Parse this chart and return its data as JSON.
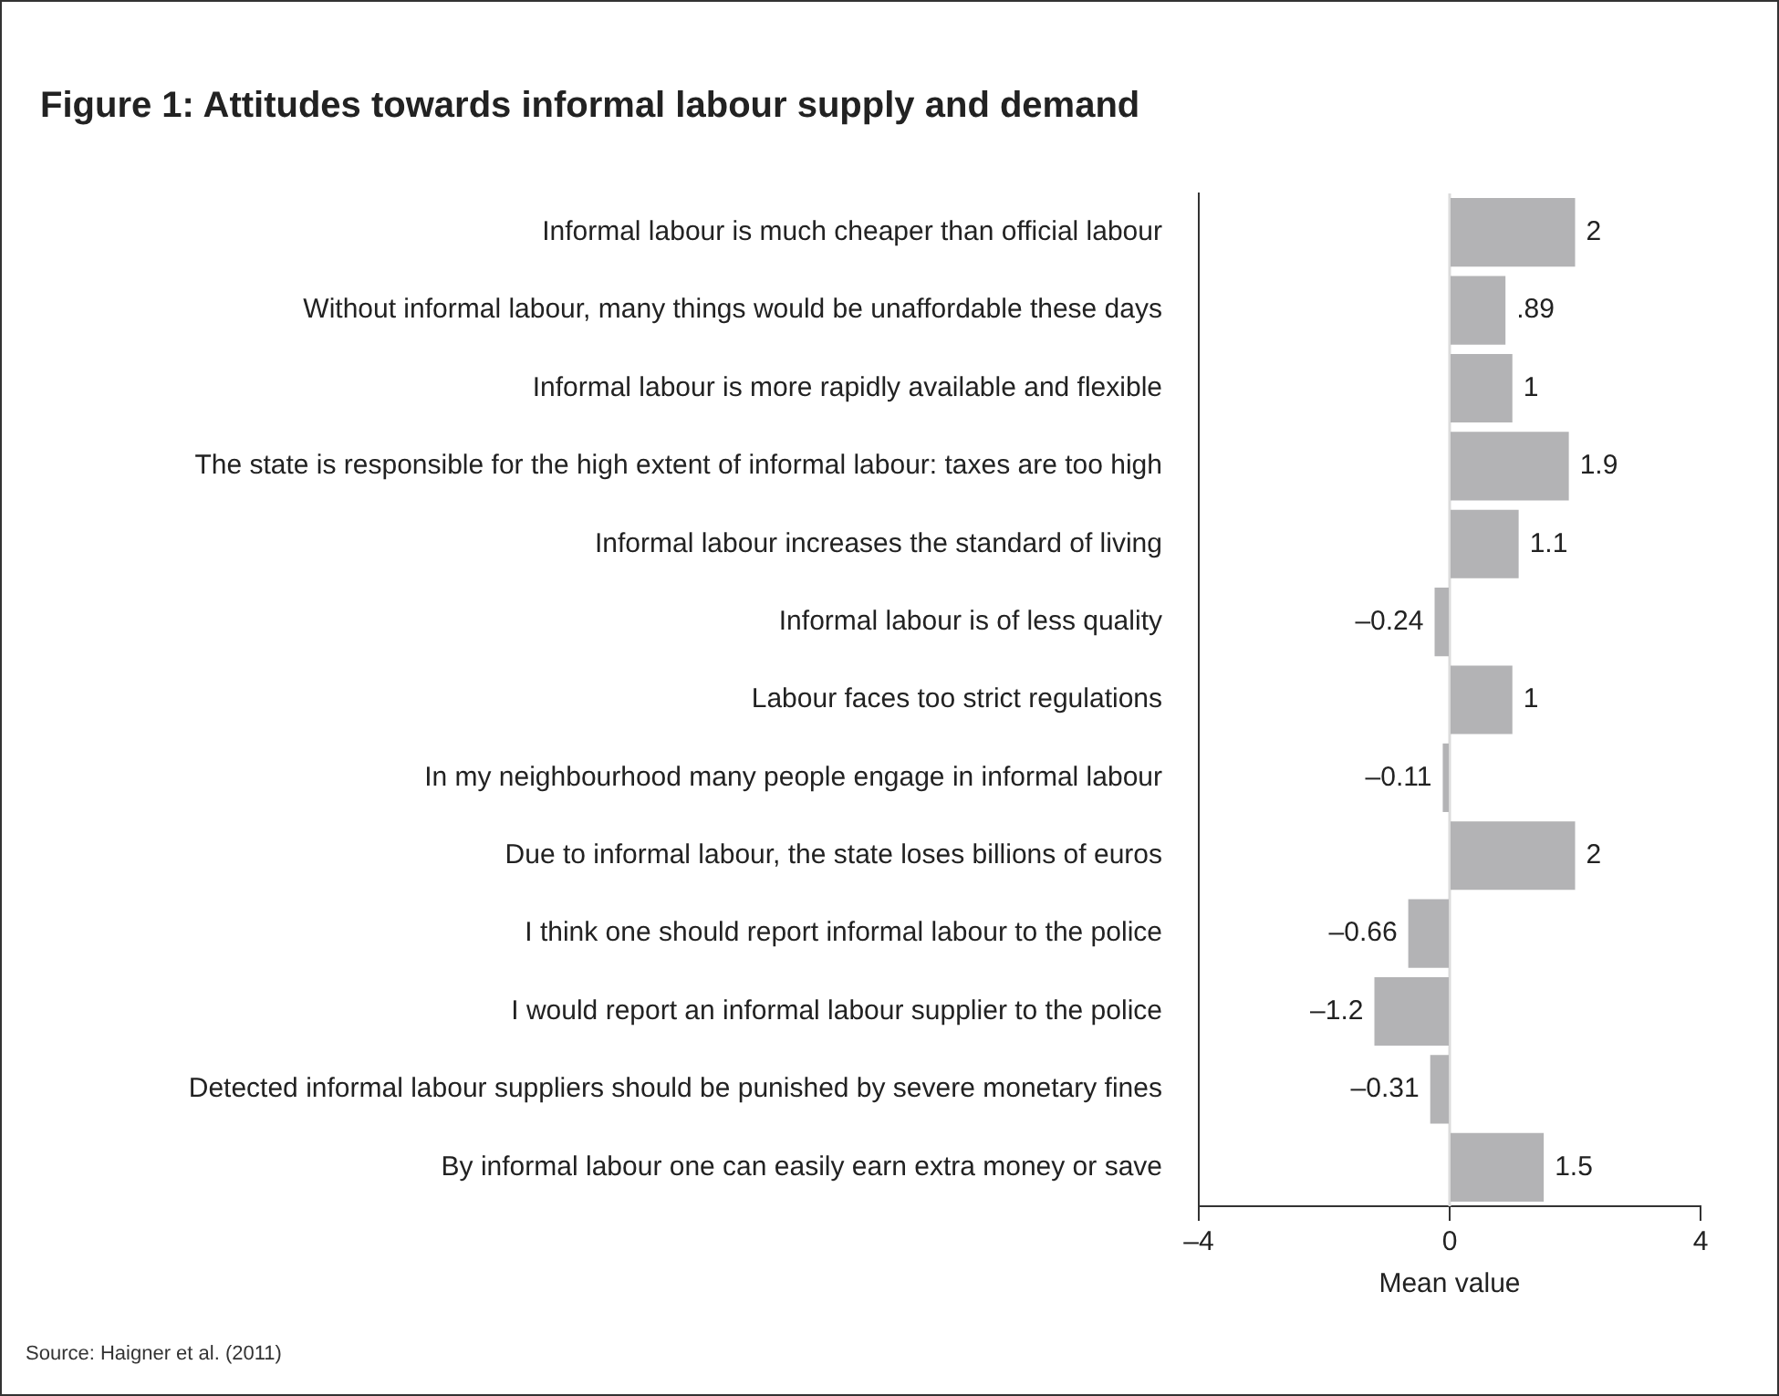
{
  "chart_data": {
    "type": "bar",
    "orientation": "horizontal",
    "title": "Figure 1: Attitudes towards informal labour supply and demand",
    "xlabel": "Mean value",
    "categories": [
      "Informal labour is much cheaper than official labour",
      "Without informal labour, many things would be unaffordable these days",
      "Informal labour is more rapidly available and flexible",
      "The state is responsible for the high extent of informal labour: taxes are too high",
      "Informal labour increases the standard of living",
      "Informal labour is of less quality",
      "Labour faces too strict regulations",
      "In my neighbourhood many people engage in informal labour",
      "Due to informal labour, the state loses billions of euros",
      "I think one should report informal labour to the police",
      "I would report an informal labour supplier to the police",
      "Detected informal labour suppliers should be punished by severe monetary fines",
      "By informal labour one can easily earn extra money or save"
    ],
    "values": [
      2,
      0.89,
      1,
      1.9,
      1.1,
      -0.24,
      1,
      -0.11,
      2,
      -0.66,
      -1.2,
      -0.31,
      1.5
    ],
    "value_labels": [
      "2",
      ".89",
      "1",
      "1.9",
      "1.1",
      "–0.24",
      "1",
      "–0.11",
      "2",
      "–0.66",
      "–1.2",
      "–0.31",
      "1.5"
    ],
    "color": "#b3b3b5",
    "xlim": [
      -4,
      4
    ],
    "xticks": [
      {
        "value": -4,
        "label": "–4"
      },
      0,
      4
    ],
    "ref_lines": [
      {
        "axis": "x",
        "value": 0,
        "color": "#dcdcdc"
      }
    ],
    "annotations": [
      "Source: Haigner et al. (2011)"
    ]
  }
}
